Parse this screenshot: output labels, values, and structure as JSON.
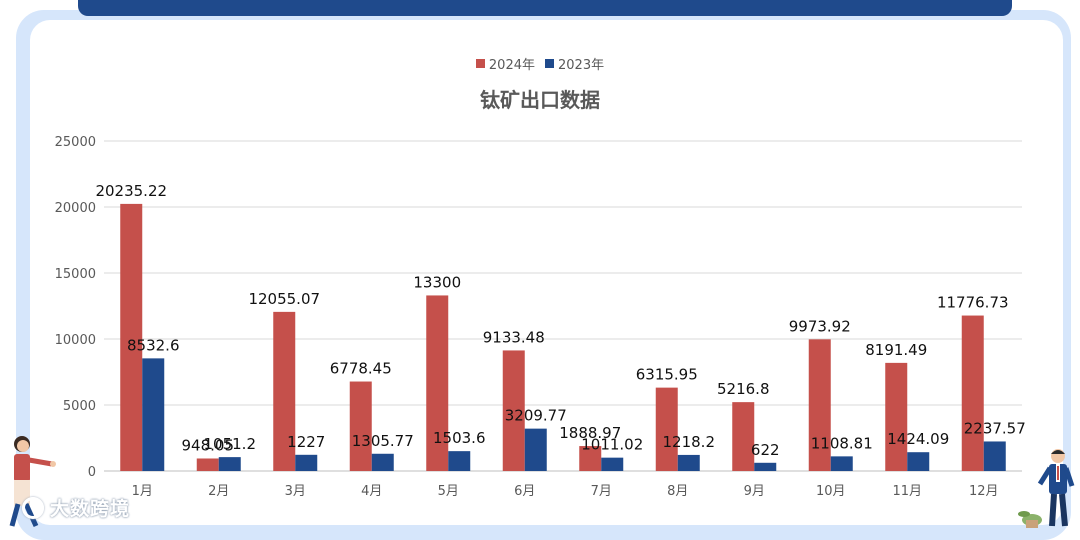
{
  "watermark": "大数跨境",
  "colors": {
    "series_2024": "#c5504b",
    "series_2023": "#1f4a8c"
  },
  "chart_data": {
    "type": "bar",
    "title": "钛矿出口数据",
    "categories": [
      "1月",
      "2月",
      "3月",
      "4月",
      "5月",
      "6月",
      "7月",
      "8月",
      "9月",
      "10月",
      "11月",
      "12月"
    ],
    "series": [
      {
        "name": "2024年",
        "values": [
          20235.22,
          948.05,
          12055.07,
          6778.45,
          13300,
          9133.48,
          1888.97,
          6315.95,
          5216.8,
          9973.92,
          8191.49,
          11776.73
        ]
      },
      {
        "name": "2023年",
        "values": [
          8532.6,
          1051.2,
          1227,
          1305.77,
          1503.6,
          3209.77,
          1011.02,
          1218.2,
          622,
          1108.81,
          1424.09,
          2237.57
        ]
      }
    ],
    "data_labels": {
      "2024年": [
        "20235.22",
        "948.05",
        "12055.07",
        "6778.45",
        "13300",
        "9133.48",
        "1888.97",
        "6315.95",
        "5216.8",
        "9973.92",
        "8191.49",
        "11776.73"
      ],
      "2023年": [
        "8532.6",
        "1051.2",
        "1227",
        "1305.77",
        "1503.6",
        "3209.77",
        "1011.02",
        "1218.2",
        "622",
        "1108.81",
        "1424.09",
        "2237.57"
      ]
    },
    "y_ticks": [
      "0",
      "5000",
      "10000",
      "15000",
      "20000",
      "25000"
    ],
    "ylim": [
      0,
      25000
    ],
    "grid": true,
    "legend_position": "top-center"
  }
}
